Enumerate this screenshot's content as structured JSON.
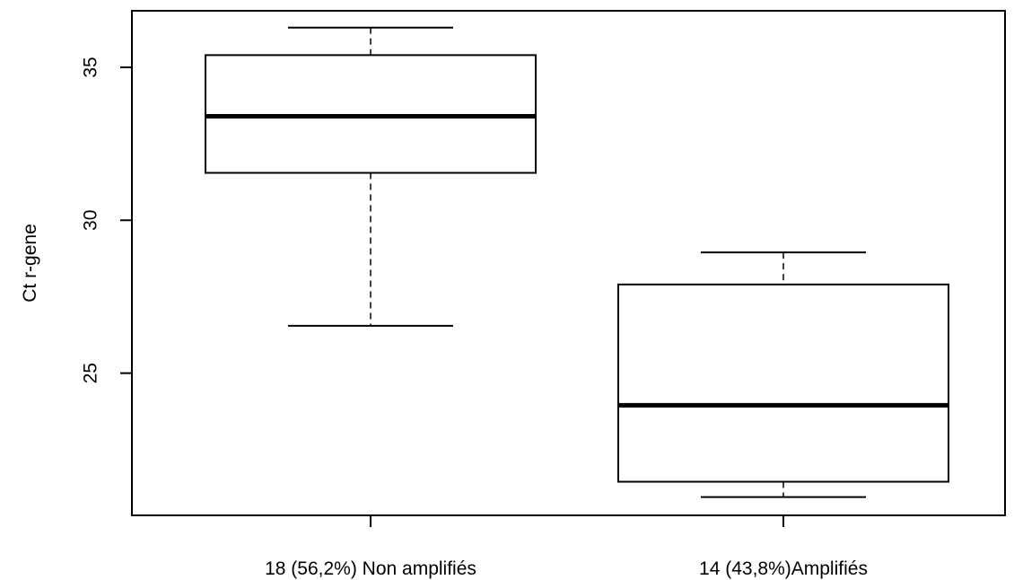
{
  "chart_data": {
    "type": "boxplot",
    "ylabel": "Ct r-gene",
    "ylim": [
      20.35,
      36.85
    ],
    "yticks": [
      25,
      30,
      35
    ],
    "categories": [
      "18 (56,2%) Non amplifiés",
      "14 (43,8%)Amplifiés"
    ],
    "boxes": [
      {
        "whisker_low": 26.55,
        "q1": 31.55,
        "median": 33.4,
        "q3": 35.4,
        "whisker_high": 36.3
      },
      {
        "whisker_low": 20.95,
        "q1": 21.45,
        "median": 23.95,
        "q3": 27.9,
        "whisker_high": 28.95
      }
    ]
  }
}
